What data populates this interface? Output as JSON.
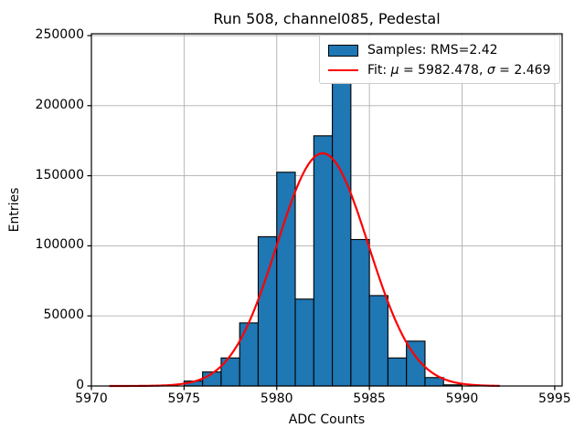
{
  "figure": {
    "title": "Run 508, channel085, Pedestal",
    "xlabel": "ADC Counts",
    "ylabel": "Entries"
  },
  "legend": {
    "samples_label": "Samples: RMS=2.42",
    "fit_parts": {
      "prefix": "Fit: ",
      "mu": "μ",
      "mu_value": " = 5982.478, ",
      "sigma": "σ",
      "sigma_value": " = 2.469"
    }
  },
  "chart_data": {
    "type": "bar",
    "subtype": "histogram",
    "title": "Run 508, channel085, Pedestal",
    "xlabel": "ADC Counts",
    "ylabel": "Entries",
    "xlim": [
      5970,
      5995.4
    ],
    "ylim": [
      0,
      251300
    ],
    "grid": true,
    "legend_position": "upper right",
    "x_ticks": {
      "values": [
        5970,
        5975,
        5980,
        5985,
        5990,
        5995
      ],
      "labels": [
        "5970",
        "5975",
        "5980",
        "5985",
        "5990",
        "5995"
      ]
    },
    "y_ticks": {
      "values": [
        0,
        50000,
        100000,
        150000,
        200000,
        250000
      ],
      "labels": [
        "0",
        "50000",
        "100000",
        "150000",
        "200000",
        "250000"
      ]
    },
    "bins": {
      "left_edges": [
        5975,
        5976,
        5977,
        5978,
        5979,
        5980,
        5981,
        5982,
        5983,
        5984,
        5985,
        5986,
        5987,
        5988,
        5989
      ],
      "width": 1,
      "counts": [
        3500,
        10000,
        20000,
        45000,
        106500,
        152500,
        62000,
        178500,
        216000,
        104500,
        64500,
        20000,
        32000,
        6000,
        800
      ],
      "series_label": "Samples: RMS=2.42",
      "rms": 2.42
    },
    "fit": {
      "label": "Fit: μ = 5982.478, σ = 2.469",
      "mu": 5982.478,
      "sigma": 2.469,
      "amplitude": 166000,
      "x_range": [
        5971,
        5992
      ]
    },
    "colors": {
      "bar_fill": "#1f77b4",
      "bar_edge": "#000000",
      "fit_line": "#ff0000",
      "gridline": "#b0b0b0",
      "spine": "#000000"
    }
  }
}
